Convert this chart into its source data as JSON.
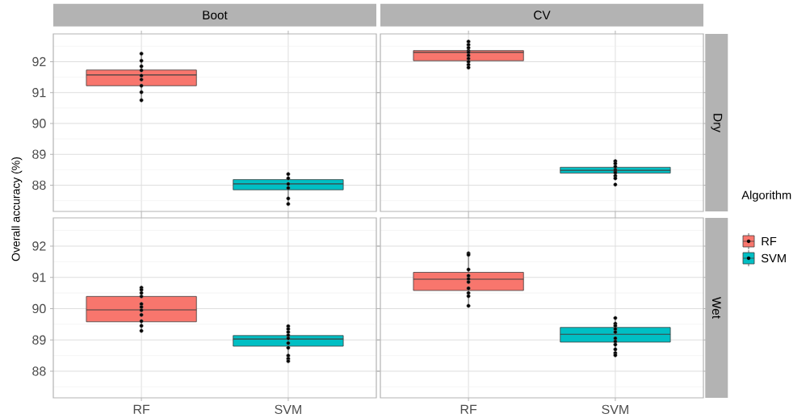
{
  "chart_data": [
    {
      "type": "box",
      "title": "Boot",
      "ylabel": "Overall accuracy (%)",
      "categories": [
        "RF",
        "SVM"
      ],
      "ylim": [
        87.15,
        92.9
      ],
      "yticks": [
        88,
        89,
        90,
        91,
        92
      ],
      "grid": true,
      "tick_labels": "y",
      "series": [
        {
          "color": "#f8766d",
          "boxes": [
            {
              "low": 90.75,
              "q1": 91.22,
              "median": 91.57,
              "q3": 91.73,
              "high": 92.26
            },
            null
          ]
        },
        {
          "color": "#00bfc4",
          "boxes": [
            null,
            {
              "low": 87.39,
              "q1": 87.85,
              "median": 88.04,
              "q3": 88.18,
              "high": 88.36
            }
          ]
        },
        {
          "type": "scatter",
          "marker": "circle",
          "color": "#000000",
          "x": [
            "RF",
            "RF",
            "RF",
            "RF",
            "RF",
            "RF",
            "RF",
            "RF",
            "RF",
            "SVM",
            "SVM",
            "SVM",
            "SVM",
            "SVM",
            "SVM"
          ],
          "values": [
            92.26,
            92.03,
            91.85,
            91.72,
            91.55,
            91.42,
            91.22,
            91.01,
            90.75,
            88.36,
            88.22,
            88.04,
            87.91,
            87.57,
            87.39
          ]
        }
      ]
    },
    {
      "type": "box",
      "title": "CV",
      "y2label": "Dry",
      "categories": [
        "RF",
        "SVM"
      ],
      "ylim": [
        87.15,
        92.9
      ],
      "yticks": [
        88,
        89,
        90,
        91,
        92
      ],
      "grid": true,
      "tick_labels": false,
      "series": [
        {
          "color": "#f8766d",
          "boxes": [
            {
              "low": 91.81,
              "q1": 92.03,
              "median": 92.3,
              "q3": 92.36,
              "high": 92.65
            },
            null
          ]
        },
        {
          "color": "#00bfc4",
          "boxes": [
            null,
            {
              "low": 88.22,
              "q1": 88.39,
              "median": 88.48,
              "q3": 88.58,
              "high": 88.78,
              "outliers": [
                88.02
              ]
            }
          ]
        },
        {
          "type": "scatter",
          "marker": "circle",
          "color": "#000000",
          "x": [
            "RF",
            "RF",
            "RF",
            "RF",
            "RF",
            "RF",
            "RF",
            "RF",
            "RF",
            "RF",
            "SVM",
            "SVM",
            "SVM",
            "SVM",
            "SVM",
            "SVM",
            "SVM",
            "SVM"
          ],
          "values": [
            92.65,
            92.55,
            92.45,
            92.35,
            92.3,
            92.2,
            92.1,
            92.0,
            91.9,
            91.81,
            88.78,
            88.7,
            88.6,
            88.5,
            88.45,
            88.4,
            88.3,
            88.22
          ]
        }
      ]
    },
    {
      "type": "box",
      "categories": [
        "RF",
        "SVM"
      ],
      "ylim": [
        87.15,
        92.9
      ],
      "yticks": [
        88,
        89,
        90,
        91,
        92
      ],
      "grid": true,
      "series": [
        {
          "color": "#f8766d",
          "boxes": [
            {
              "low": 89.29,
              "q1": 89.58,
              "median": 89.96,
              "q3": 90.39,
              "high": 90.67
            },
            null
          ]
        },
        {
          "color": "#00bfc4",
          "boxes": [
            null,
            {
              "low": 88.32,
              "q1": 88.8,
              "median": 89.03,
              "q3": 89.14,
              "high": 89.44
            }
          ]
        },
        {
          "type": "scatter",
          "marker": "circle",
          "color": "#000000",
          "x": [
            "RF",
            "RF",
            "RF",
            "RF",
            "RF",
            "RF",
            "RF",
            "RF",
            "RF",
            "RF",
            "RF",
            "SVM",
            "SVM",
            "SVM",
            "SVM",
            "SVM",
            "SVM",
            "SVM",
            "SVM",
            "SVM",
            "SVM"
          ],
          "values": [
            90.67,
            90.6,
            90.5,
            90.39,
            90.15,
            90.05,
            89.95,
            89.8,
            89.6,
            89.45,
            89.29,
            89.44,
            89.35,
            89.25,
            89.15,
            89.05,
            88.9,
            88.75,
            88.5,
            88.4,
            88.32
          ]
        }
      ]
    },
    {
      "type": "box",
      "y2label": "Wet",
      "legend": "right",
      "legend_title": "Algorithm",
      "categories": [
        "RF",
        "SVM"
      ],
      "ylim": [
        87.15,
        92.9
      ],
      "yticks": [
        88,
        89,
        90,
        91,
        92
      ],
      "grid": true,
      "tick_labels": "x",
      "series": [
        {
          "name": "RF",
          "color": "#f8766d",
          "boxes": [
            {
              "low": 90.09,
              "q1": 90.58,
              "median": 90.94,
              "q3": 91.16,
              "high": 91.77
            },
            null
          ]
        },
        {
          "name": "SVM",
          "color": "#00bfc4",
          "boxes": [
            null,
            {
              "low": 88.51,
              "q1": 88.93,
              "median": 89.18,
              "q3": 89.4,
              "high": 89.7
            }
          ]
        },
        {
          "type": "scatter",
          "marker": "circle",
          "color": "#000000",
          "x": [
            "RF",
            "RF",
            "RF",
            "RF",
            "RF",
            "RF",
            "RF",
            "RF",
            "RF",
            "RF",
            "SVM",
            "SVM",
            "SVM",
            "SVM",
            "SVM",
            "SVM",
            "SVM",
            "SVM",
            "SVM",
            "SVM",
            "SVM"
          ],
          "values": [
            91.77,
            91.72,
            91.25,
            91.05,
            90.95,
            90.85,
            90.65,
            90.5,
            90.4,
            90.09,
            89.7,
            89.52,
            89.45,
            89.35,
            89.25,
            89.05,
            88.95,
            88.85,
            88.7,
            88.58,
            88.51
          ]
        }
      ]
    }
  ]
}
